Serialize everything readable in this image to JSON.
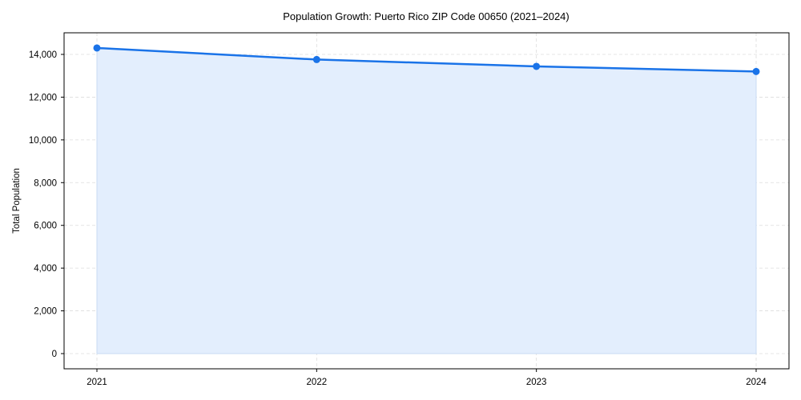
{
  "chart_data": {
    "type": "area",
    "title": "Population Growth: Puerto Rico ZIP Code 00650 (2021–2024)",
    "xlabel": "",
    "ylabel": "Total Population",
    "categories": [
      "2021",
      "2022",
      "2023",
      "2024"
    ],
    "series": [
      {
        "name": "Total Population",
        "values": [
          14300,
          13760,
          13440,
          13200
        ],
        "line_color": "#1a73e8",
        "fill_color": "#e3eefd",
        "marker": "circle"
      }
    ],
    "ylim": [
      -700,
      15000
    ],
    "yticks": [
      0,
      2000,
      4000,
      6000,
      8000,
      10000,
      12000,
      14000
    ],
    "ytick_labels": [
      "0",
      "2,000",
      "4,000",
      "6,000",
      "8,000",
      "10,000",
      "12,000",
      "14,000"
    ],
    "xtick_labels": [
      "2021",
      "2022",
      "2023",
      "2024"
    ],
    "grid": true,
    "grid_style": "dashed",
    "legend": null
  }
}
